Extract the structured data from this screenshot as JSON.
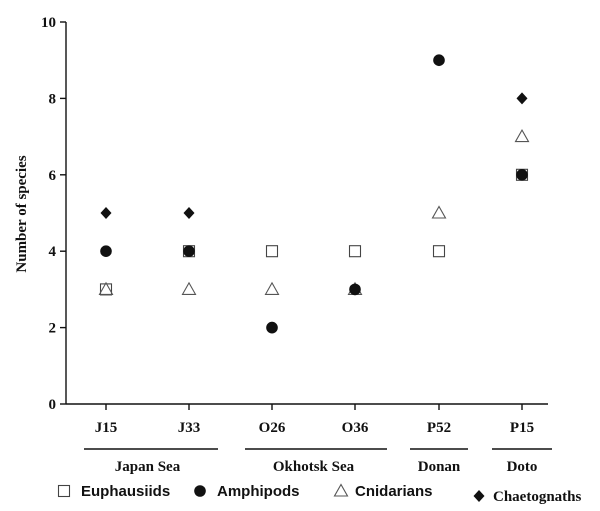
{
  "chart_data": {
    "type": "scatter",
    "title": "",
    "xlabel": "",
    "ylabel": "Number of species",
    "ylim": [
      0,
      10
    ],
    "yticks": [
      "0",
      "2",
      "4",
      "6",
      "8",
      "10"
    ],
    "categories": [
      "J15",
      "J33",
      "O26",
      "O36",
      "P52",
      "P15"
    ],
    "groups": [
      {
        "label": "Japan Sea",
        "categories": [
          "J15",
          "J33"
        ]
      },
      {
        "label": "Okhotsk Sea",
        "categories": [
          "O26",
          "O36"
        ]
      },
      {
        "label": "Donan",
        "categories": [
          "P52"
        ]
      },
      {
        "label": "Doto",
        "categories": [
          "P15"
        ]
      }
    ],
    "series": [
      {
        "name": "Euphausiids",
        "marker": "open-square",
        "values": [
          3,
          4,
          4,
          4,
          4,
          6
        ]
      },
      {
        "name": "Amphipods",
        "marker": "filled-circle",
        "values": [
          4,
          4,
          2,
          3,
          9,
          6
        ]
      },
      {
        "name": "Cnidarians",
        "marker": "open-triangle",
        "values": [
          3,
          3,
          3,
          3,
          5,
          7
        ]
      },
      {
        "name": "Chaetognaths",
        "marker": "filled-diamond",
        "values": [
          5,
          5,
          2,
          3,
          9,
          8
        ]
      }
    ],
    "grid": false,
    "legend_position": "bottom"
  }
}
